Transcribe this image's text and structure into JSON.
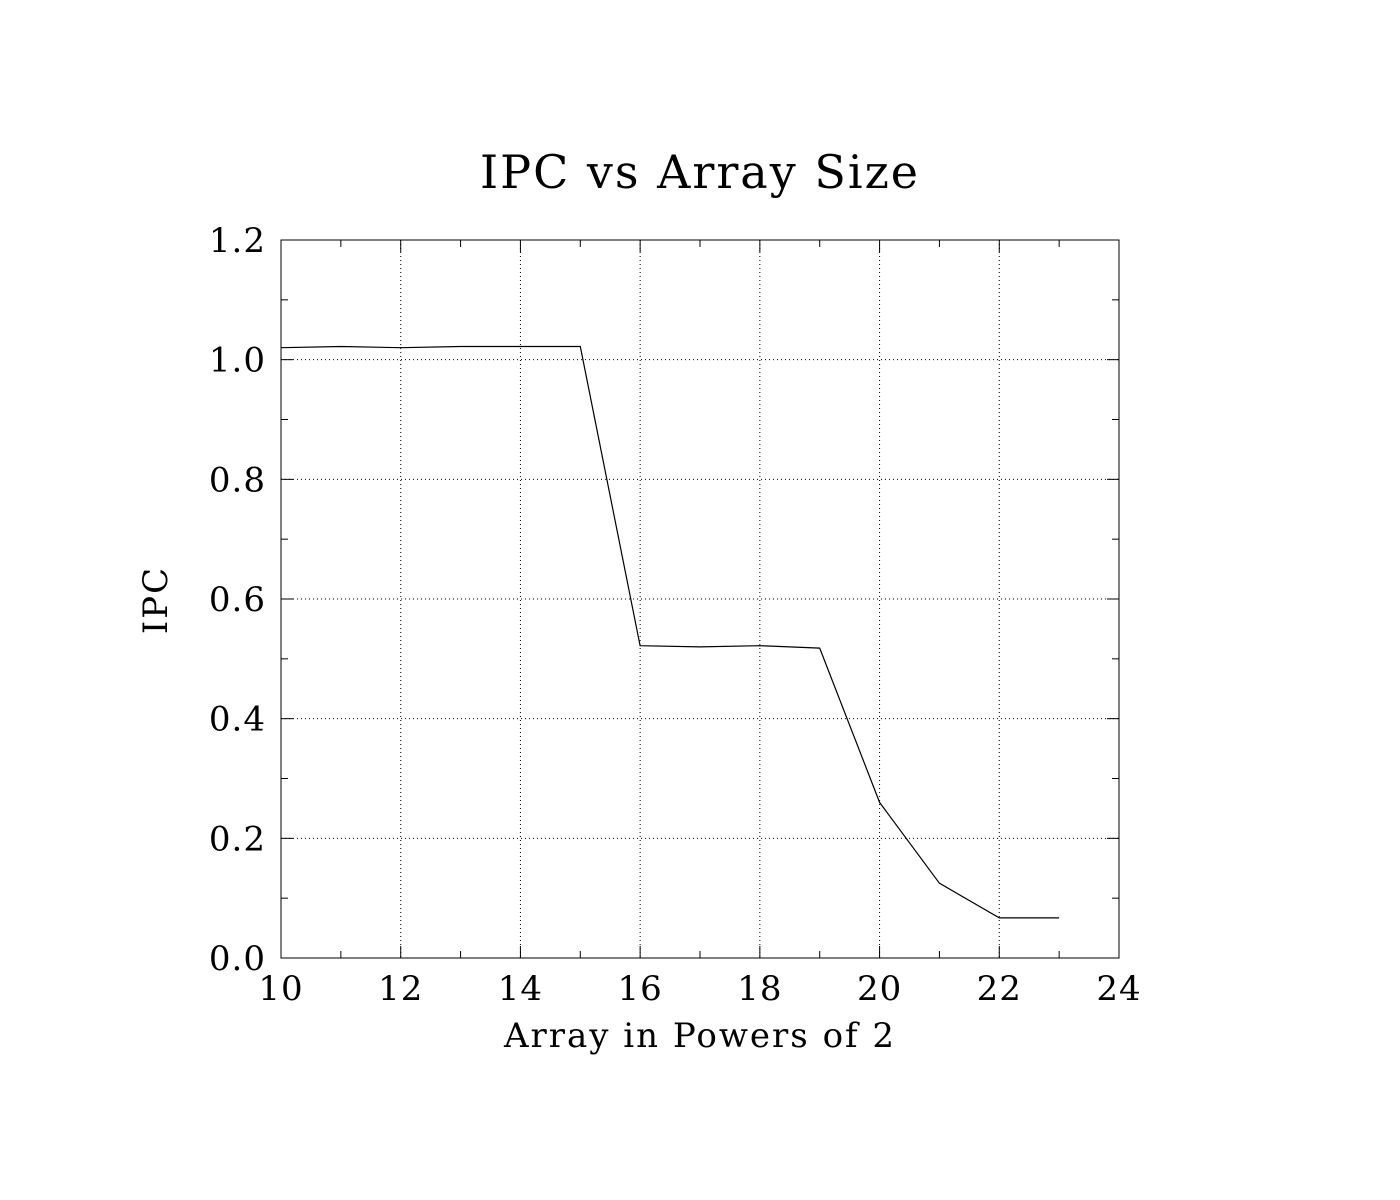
{
  "chart_data": {
    "type": "line",
    "title": "IPC vs Array Size",
    "xlabel": "Array in Powers of 2",
    "ylabel": "IPC",
    "xlim": [
      10,
      24
    ],
    "ylim": [
      0.0,
      1.2
    ],
    "grid": true,
    "x_ticks": [
      "10",
      "12",
      "14",
      "16",
      "18",
      "20",
      "22",
      "24"
    ],
    "y_ticks": [
      "0.0",
      "0.2",
      "0.4",
      "0.6",
      "0.8",
      "1.0",
      "1.2"
    ],
    "series": [
      {
        "x": [
          10,
          11,
          12,
          13,
          14,
          15,
          16,
          17,
          18,
          19,
          20,
          21,
          22,
          23
        ],
        "values": [
          1.02,
          1.022,
          1.02,
          1.022,
          1.022,
          1.022,
          0.522,
          0.52,
          0.522,
          0.518,
          0.26,
          0.125,
          0.067,
          0.067
        ]
      }
    ]
  }
}
